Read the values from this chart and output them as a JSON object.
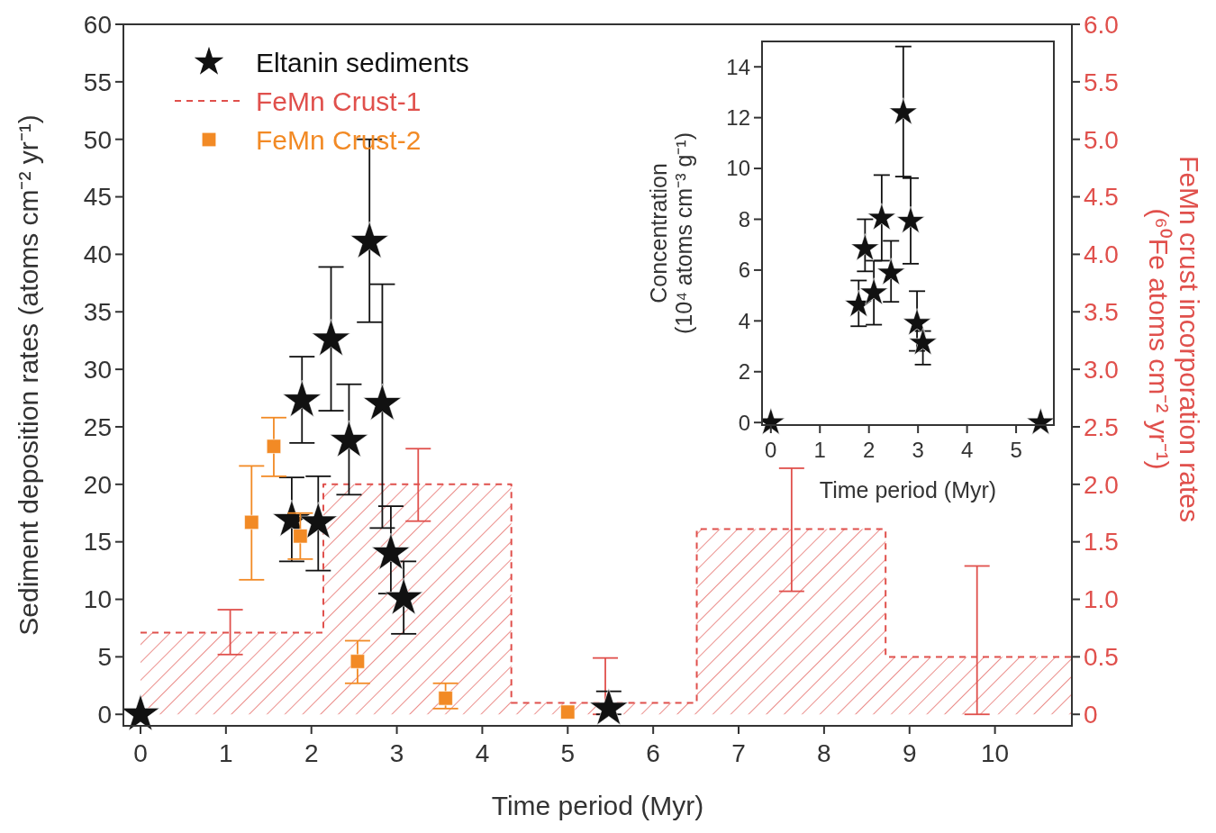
{
  "chart_data": [
    {
      "type": "scatter",
      "xlabel": "Time period (Myr)",
      "ylabel": "Sediment deposition rates (atoms cm⁻² yr⁻¹)",
      "y2label": "FeMn crust incorporation rates\n(⁶⁰Fe atoms cm⁻² yr⁻¹)",
      "xlim": [
        -0.2,
        10.9
      ],
      "xticks": [
        0,
        1,
        2,
        3,
        4,
        5,
        6,
        7,
        8,
        9,
        10
      ],
      "ylim": [
        -1,
        60
      ],
      "yticks": [
        0,
        5,
        10,
        15,
        20,
        25,
        30,
        35,
        40,
        45,
        50,
        55,
        60
      ],
      "y2lim": [
        -0.1,
        6.0
      ],
      "y2ticks": [
        0,
        0.5,
        {
          "value": 1,
          "label": "1.0"
        },
        1.5,
        {
          "value": 2,
          "label": "2.0"
        },
        2.5,
        {
          "value": 3,
          "label": "3.0"
        },
        3.5,
        {
          "value": 4,
          "label": "4.0"
        },
        4.5,
        {
          "value": 5,
          "label": "5.0"
        },
        5.5,
        {
          "value": 6,
          "label": "6.0"
        }
      ],
      "legend": "top left",
      "series": [
        {
          "name": "Eltanin sediments",
          "type": "scatter",
          "marker": "star",
          "color": "#111111",
          "x": [
            0,
            1.77,
            1.89,
            2.08,
            2.23,
            2.44,
            2.68,
            2.83,
            2.93,
            3.08,
            5.48
          ],
          "values": [
            0,
            16.9,
            27.3,
            16.7,
            32.6,
            23.8,
            41.1,
            27.0,
            14.0,
            10.1,
            0.5
          ],
          "errors": [
            null,
            [
              13.3,
              20.6
            ],
            [
              23.6,
              31.1
            ],
            [
              12.5,
              20.7
            ],
            [
              26.4,
              38.9
            ],
            [
              19.1,
              28.7
            ],
            [
              34.1,
              50.0
            ],
            [
              16.2,
              37.4
            ],
            [
              10.5,
              18.1
            ],
            [
              7.0,
              13.3
            ],
            [
              0,
              2.0
            ]
          ]
        },
        {
          "name": "FeMn Crust-1",
          "type": "area",
          "axis": "y2",
          "line_style": "dashed",
          "color": "#e0504c",
          "x": [
            0,
            1.05,
            2.14,
            2.14,
            3.25,
            4.34,
            4.34,
            5.44,
            6.51,
            6.51,
            7.62,
            8.72,
            8.72,
            9.79,
            10.9
          ],
          "values": [
            0.71,
            0.71,
            0.71,
            2.0,
            2.0,
            2.0,
            0.1,
            0.1,
            0.1,
            1.61,
            1.61,
            1.61,
            0.5,
            0.5,
            0.5
          ],
          "errors": [
            null,
            [
              0.52,
              0.91
            ],
            null,
            null,
            [
              1.68,
              2.31
            ],
            null,
            null,
            [
              0,
              0.49
            ],
            null,
            null,
            [
              1.07,
              2.14
            ],
            null,
            null,
            [
              0,
              1.29
            ],
            null
          ]
        },
        {
          "name": "FeMn Crust-2",
          "type": "scatter",
          "marker": "square",
          "color": "#f28a25",
          "x": [
            1.3,
            1.56,
            1.87,
            2.54,
            3.57,
            5.0
          ],
          "values": [
            16.7,
            23.3,
            15.5,
            4.6,
            1.4,
            0.2
          ],
          "errors": [
            [
              11.7,
              21.6
            ],
            [
              20.7,
              25.8
            ],
            [
              13.5,
              17.5
            ],
            [
              2.7,
              6.4
            ],
            [
              0.5,
              2.7
            ],
            null
          ]
        }
      ]
    },
    {
      "type": "scatter",
      "xlabel": "Time period (Myr)",
      "ylabel": "Concentration\n(10⁴ atoms cm⁻³ g⁻¹)",
      "xlim": [
        -0.18,
        5.77
      ],
      "xticks": [
        0,
        1,
        2,
        3,
        4,
        5
      ],
      "ylim": [
        -0.1,
        15
      ],
      "yticks": [
        0,
        2,
        4,
        6,
        8,
        10,
        12,
        14
      ],
      "series": [
        {
          "type": "scatter",
          "marker": "star",
          "color": "#111111",
          "x": [
            0,
            1.79,
            1.92,
            2.1,
            2.26,
            2.45,
            2.7,
            2.85,
            2.98,
            3.1,
            5.5
          ],
          "values": [
            0,
            4.63,
            6.85,
            5.11,
            8.05,
            5.89,
            12.2,
            7.93,
            3.91,
            3.13,
            0
          ],
          "errors": [
            null,
            [
              3.79,
              5.59
            ],
            [
              5.95,
              8.0
            ],
            [
              3.85,
              6.37
            ],
            [
              6.37,
              9.74
            ],
            [
              4.75,
              7.15
            ],
            [
              9.68,
              14.8
            ],
            [
              6.25,
              9.62
            ],
            [
              2.82,
              5.17
            ],
            [
              2.28,
              3.6
            ],
            null
          ]
        }
      ]
    }
  ]
}
